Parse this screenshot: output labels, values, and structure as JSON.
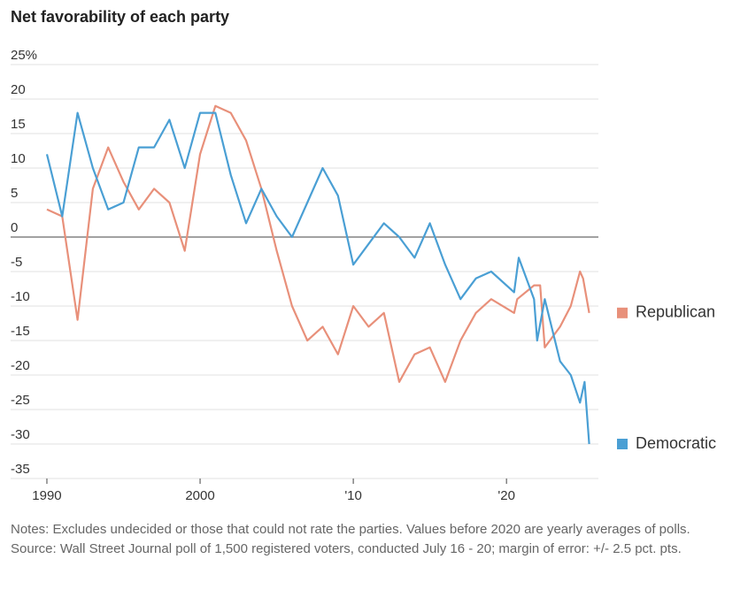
{
  "chart_data": {
    "type": "line",
    "title": "Net favorability of each party",
    "xlim": [
      1989.25,
      2026
    ],
    "xticks": [
      1990,
      2000,
      {
        "value": 2010,
        "label": "'10"
      },
      {
        "value": 2020,
        "label": "'20"
      }
    ],
    "ylim": [
      -35,
      25
    ],
    "yticks": [
      {
        "value": 25,
        "label": "25%"
      },
      20,
      15,
      10,
      5,
      0,
      -5,
      -10,
      -15,
      -20,
      -25,
      -30,
      -35
    ],
    "grid": true,
    "legend": "right",
    "series": [
      {
        "name": "Republican",
        "color": "#e8907a",
        "x": [
          1990,
          1991,
          1992,
          1993,
          1994,
          1995,
          1996,
          1997,
          1998,
          1999,
          2000,
          2001,
          2002,
          2003,
          2004,
          2005,
          2006,
          2007,
          2008,
          2009,
          2010,
          2011,
          2012,
          2013,
          2014,
          2015,
          2016,
          2017,
          2018,
          2019,
          2020.5,
          2020.7,
          2021.8,
          2022.2,
          2022.5,
          2023.5,
          2024.2,
          2024.8,
          2025.0,
          2025.4
        ],
        "values": [
          4,
          3,
          -12,
          7,
          13,
          8,
          4,
          7,
          5,
          -2,
          12,
          19,
          18,
          14,
          7,
          -2,
          -10,
          -15,
          -13,
          -17,
          -10,
          -13,
          -11,
          -21,
          -17,
          -16,
          -21,
          -15,
          -11,
          -9,
          -11,
          -9,
          -7,
          -7,
          -16,
          -13,
          -10,
          -5,
          -6,
          -11
        ]
      },
      {
        "name": "Democratic",
        "color": "#4a9fd4",
        "x": [
          1990,
          1991,
          1992,
          1993,
          1994,
          1995,
          1996,
          1997,
          1998,
          1999,
          2000,
          2001,
          2002,
          2003,
          2004,
          2005,
          2006,
          2007,
          2008,
          2009,
          2010,
          2012,
          2013,
          2014,
          2015,
          2016,
          2017,
          2018,
          2019,
          2020.5,
          2020.8,
          2021.8,
          2022.0,
          2022.5,
          2023.5,
          2024.2,
          2024.8,
          2025.1,
          2025.4
        ],
        "values": [
          12,
          3,
          18,
          10,
          4,
          5,
          13,
          13,
          17,
          10,
          18,
          18,
          9,
          2,
          7,
          3,
          0,
          5,
          10,
          6,
          -4,
          2,
          0,
          -3,
          2,
          -4,
          -9,
          -6,
          -5,
          -8,
          -3,
          -9,
          -15,
          -9,
          -18,
          -20,
          -24,
          -21,
          -30
        ]
      }
    ]
  },
  "notes": "Notes: Excludes undecided or those that could not rate the parties. Values before 2020 are yearly averages of polls.",
  "source": "Source: Wall Street Journal poll of 1,500 registered voters, conducted July 16 - 20; margin of error: +/- 2.5 pct. pts."
}
